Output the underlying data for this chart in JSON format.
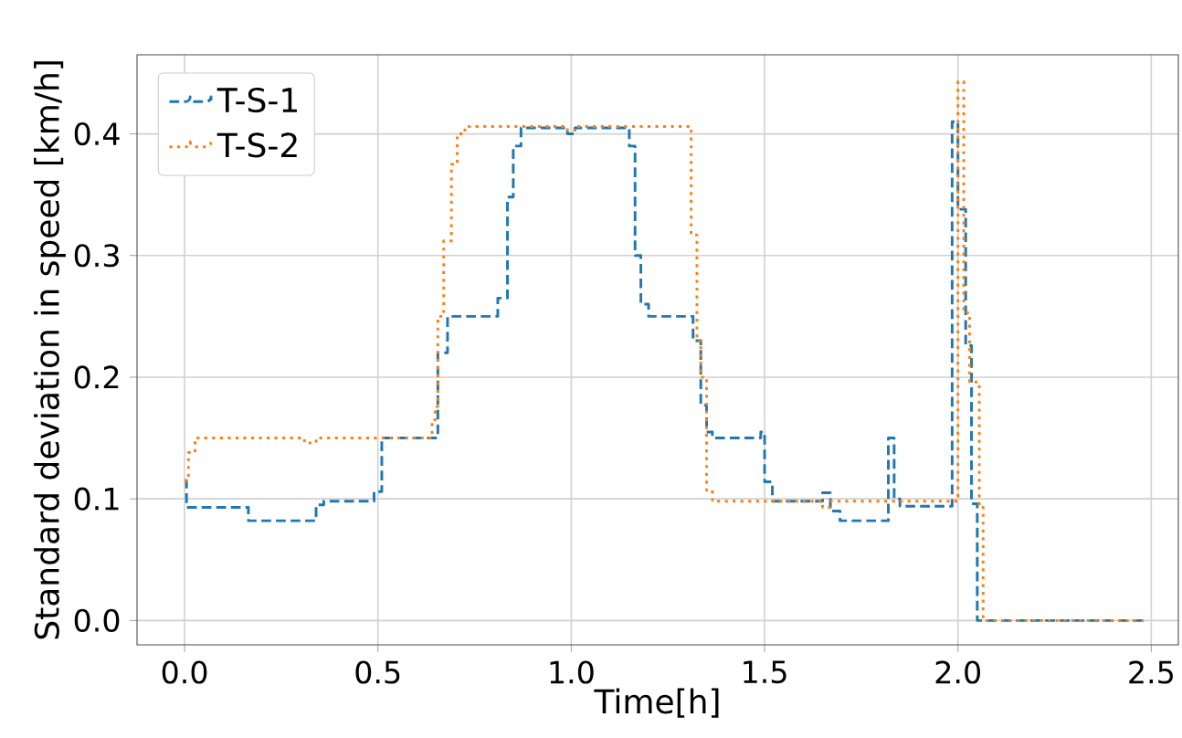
{
  "chart_data": {
    "type": "step",
    "xlabel": "Time[h]",
    "ylabel": "Standard deviation in speed [km/h]",
    "xlim": [
      -0.123,
      2.57
    ],
    "ylim": [
      -0.02,
      0.465
    ],
    "xticks": [
      {
        "value": 0,
        "label": "0.0"
      },
      {
        "value": 0.5,
        "label": "0.5"
      },
      {
        "value": 1,
        "label": "1.0"
      },
      {
        "value": 1.5,
        "label": "1.5"
      },
      {
        "value": 2,
        "label": "2.0"
      },
      {
        "value": 2.5,
        "label": "2.5"
      }
    ],
    "yticks": [
      {
        "value": 0,
        "label": "0.0"
      },
      {
        "value": 0.1,
        "label": "0.1"
      },
      {
        "value": 0.2,
        "label": "0.2"
      },
      {
        "value": 0.3,
        "label": "0.3"
      },
      {
        "value": 0.4,
        "label": "0.4"
      }
    ],
    "grid": true,
    "legend": "top left",
    "series": [
      {
        "name": "T-S-1",
        "color": "#1f77b4",
        "line_style": "dashed",
        "x": [
          0,
          0.005,
          0.165,
          0.34,
          0.36,
          0.49,
          0.51,
          0.655,
          0.68,
          0.81,
          0.835,
          0.85,
          0.87,
          0.99,
          1.01,
          1.15,
          1.165,
          1.18,
          1.2,
          1.315,
          1.335,
          1.35,
          1.365,
          1.49,
          1.5,
          1.52,
          1.65,
          1.67,
          1.695,
          1.82,
          1.835,
          1.85,
          1.985,
          2.0,
          2.02,
          2.035,
          2.05,
          2.48
        ],
        "values": [
          0.115,
          0.093,
          0.082,
          0.095,
          0.098,
          0.106,
          0.15,
          0.22,
          0.25,
          0.265,
          0.348,
          0.39,
          0.405,
          0.4,
          0.405,
          0.39,
          0.3,
          0.26,
          0.25,
          0.23,
          0.177,
          0.155,
          0.15,
          0.155,
          0.114,
          0.098,
          0.105,
          0.09,
          0.082,
          0.15,
          0.1,
          0.094,
          0.41,
          0.338,
          0.226,
          0.096,
          0,
          0
        ]
      },
      {
        "name": "T-S-2",
        "color": "#ff7f0e",
        "line_style": "dotted",
        "x": [
          0,
          0.01,
          0.027,
          0.31,
          0.34,
          0.64,
          0.648,
          0.655,
          0.67,
          0.69,
          0.705,
          0.725,
          0.99,
          1.01,
          1.31,
          1.325,
          1.335,
          1.35,
          1.365,
          1.65,
          1.67,
          1.985,
          2.0,
          2.015,
          2.03,
          2.055,
          2.065,
          2.48
        ],
        "values": [
          0.115,
          0.138,
          0.15,
          0.146,
          0.15,
          0.165,
          0.176,
          0.25,
          0.312,
          0.375,
          0.4,
          0.406,
          0.403,
          0.406,
          0.317,
          0.23,
          0.2,
          0.107,
          0.098,
          0.093,
          0.098,
          0.098,
          0.443,
          0.253,
          0.196,
          0.093,
          0,
          0
        ]
      }
    ]
  }
}
